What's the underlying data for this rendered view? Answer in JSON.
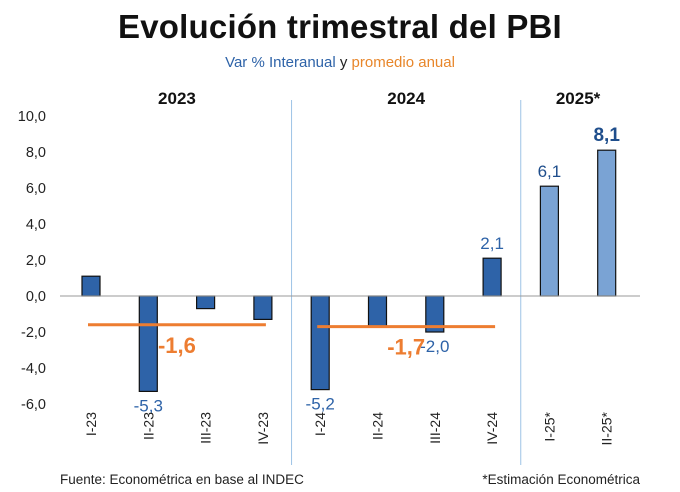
{
  "title": "Evolución trimestral del PBI",
  "subtitle": {
    "main": "Var % Interanual",
    "connector": "y",
    "highlight": "promedio anual"
  },
  "source": "Fuente: Econométrica en base al INDEC",
  "note": "*Estimación Econométrica",
  "colors": {
    "bar_actual": "#2e63a8",
    "bar_estimate": "#7aa3d4",
    "average": "#ed7d31",
    "label_actual": "#2e63a8",
    "label_estimate": "#1f4e8c",
    "separator": "#9dc3e6"
  },
  "chart_data": {
    "type": "bar",
    "categories": [
      "I-23",
      "II-23",
      "III-23",
      "IV-23",
      "I-24",
      "II-24",
      "III-24",
      "IV-24",
      "I-25*",
      "II-25*"
    ],
    "values": [
      1.1,
      -5.3,
      -0.7,
      -1.3,
      -5.2,
      -1.7,
      -2.0,
      2.1,
      6.1,
      8.1
    ],
    "data_labels": [
      "",
      "-5,3",
      "",
      "",
      "-5,2",
      "",
      "-2,0",
      "2,1",
      "6,1",
      "8,1"
    ],
    "estimate_indices": [
      8,
      9
    ],
    "groups": [
      {
        "label": "2023",
        "start": 0,
        "end": 3
      },
      {
        "label": "2024",
        "start": 4,
        "end": 7
      },
      {
        "label": "2025*",
        "start": 8,
        "end": 9
      }
    ],
    "annual_averages": [
      {
        "label": "-1,6",
        "value": -1.6,
        "start": 0,
        "end": 3
      },
      {
        "label": "-1,7",
        "value": -1.7,
        "start": 4,
        "end": 7
      }
    ],
    "ylim": [
      -6,
      10
    ],
    "yticks": [
      -6,
      -4,
      -2,
      0,
      2,
      4,
      6,
      8,
      10
    ],
    "ytick_labels": [
      "-6,0",
      "-4,0",
      "-2,0",
      "0,0",
      "2,0",
      "4,0",
      "6,0",
      "8,0",
      "10,0"
    ],
    "grid": false,
    "xlabel": "",
    "ylabel": ""
  }
}
